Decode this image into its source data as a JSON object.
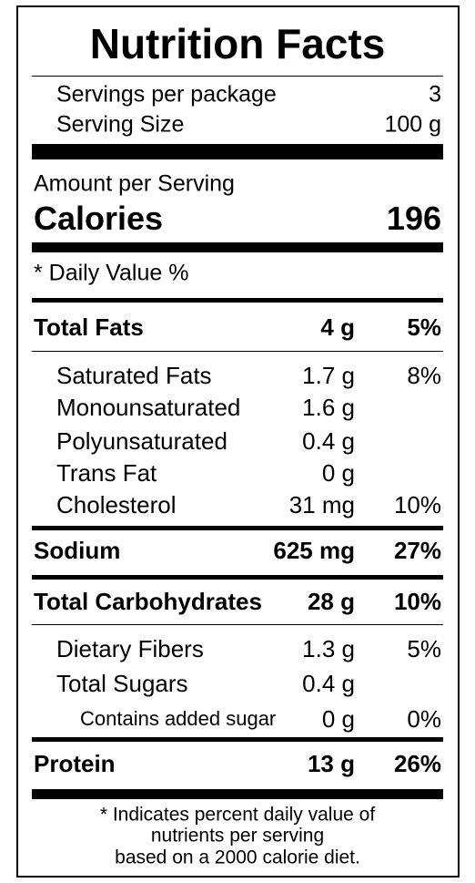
{
  "header": {
    "title": "Nutrition Facts"
  },
  "servings": [
    {
      "label": "Servings per package",
      "value": "3"
    },
    {
      "label": "Serving Size",
      "value": "100 g"
    }
  ],
  "amount_label": "Amount per Serving",
  "calories": {
    "label": "Calories",
    "value": "196"
  },
  "daily_value_header": "* Daily Value %",
  "nutrients": [
    {
      "name": "Total Fats",
      "amount": "4 g",
      "dv": "5%"
    },
    {
      "name": "Saturated Fats",
      "amount": "1.7 g",
      "dv": "8%"
    },
    {
      "name": "Monounsaturated",
      "amount": "1.6 g"
    },
    {
      "name": "Polyunsaturated",
      "amount": "0.4 g"
    },
    {
      "name": "Trans Fat",
      "amount": "0 g"
    },
    {
      "name": "Cholesterol",
      "amount": "31 mg",
      "dv": "10%"
    },
    {
      "name": "Sodium",
      "amount": "625 mg",
      "dv": "27%"
    },
    {
      "name": "Total Carbohydrates",
      "amount": "28 g",
      "dv": "10%"
    },
    {
      "name": "Dietary Fibers",
      "amount": "1.3 g",
      "dv": "5%"
    },
    {
      "name": "Total Sugars",
      "amount": "0.4 g"
    },
    {
      "name": "Contains added sugar",
      "amount": "0 g",
      "dv": "0%"
    },
    {
      "name": "Protein",
      "amount": "13 g",
      "dv": "26%"
    }
  ],
  "footnote": [
    "* Indicates percent daily value of",
    "nutrients per serving",
    "based on a 2000 calorie diet."
  ]
}
